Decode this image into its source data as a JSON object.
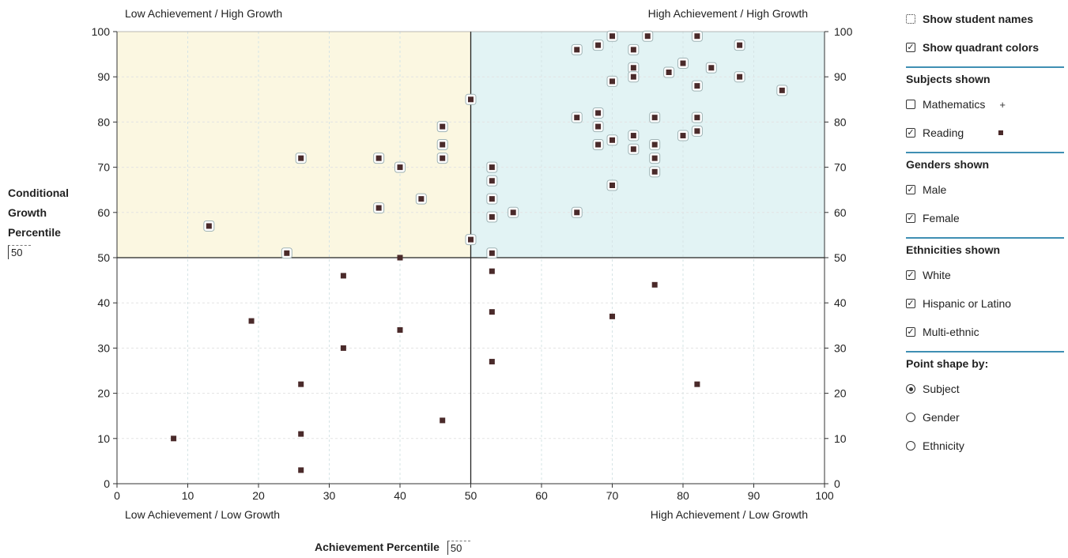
{
  "chart_data": {
    "type": "scatter",
    "xlabel": "Achievement Percentile",
    "ylabel": "Conditional Growth Percentile",
    "xlim": [
      0,
      100
    ],
    "ylim": [
      0,
      100
    ],
    "x_ticks": [
      0,
      10,
      20,
      30,
      40,
      50,
      60,
      70,
      80,
      90,
      100
    ],
    "y_ticks": [
      0,
      10,
      20,
      30,
      40,
      50,
      60,
      70,
      80,
      90,
      100
    ],
    "x_reference": 50,
    "y_reference": 50,
    "quadrant_labels": {
      "top_left": "Low Achievement / High Growth",
      "top_right": "High Achievement / High Growth",
      "bottom_left": "Low Achievement / Low Growth",
      "bottom_right": "High Achievement / Low Growth"
    },
    "quadrant_colors": {
      "top_left": "#fbf7e1",
      "top_right": "#e2f3f4",
      "bottom_left": "#ffffff",
      "bottom_right": "#ffffff"
    },
    "series": [
      {
        "name": "Reading",
        "color": "#4a2a2a",
        "points": [
          [
            70,
            99
          ],
          [
            75,
            99
          ],
          [
            82,
            99
          ],
          [
            65,
            96
          ],
          [
            68,
            97
          ],
          [
            73,
            96
          ],
          [
            88,
            97
          ],
          [
            80,
            93
          ],
          [
            73,
            92
          ],
          [
            78,
            91
          ],
          [
            84,
            92
          ],
          [
            73,
            90
          ],
          [
            88,
            90
          ],
          [
            70,
            89
          ],
          [
            82,
            88
          ],
          [
            94,
            87
          ],
          [
            50,
            85
          ],
          [
            65,
            81
          ],
          [
            68,
            82
          ],
          [
            76,
            81
          ],
          [
            82,
            81
          ],
          [
            68,
            79
          ],
          [
            82,
            78
          ],
          [
            80,
            77
          ],
          [
            73,
            77
          ],
          [
            70,
            76
          ],
          [
            68,
            75
          ],
          [
            76,
            75
          ],
          [
            73,
            74
          ],
          [
            76,
            72
          ],
          [
            76,
            69
          ],
          [
            70,
            66
          ],
          [
            46,
            79
          ],
          [
            46,
            75
          ],
          [
            46,
            72
          ],
          [
            26,
            72
          ],
          [
            37,
            72
          ],
          [
            40,
            70
          ],
          [
            53,
            70
          ],
          [
            53,
            67
          ],
          [
            43,
            63
          ],
          [
            53,
            63
          ],
          [
            37,
            61
          ],
          [
            56,
            60
          ],
          [
            65,
            60
          ],
          [
            53,
            59
          ],
          [
            13,
            57
          ],
          [
            50,
            54
          ],
          [
            24,
            51
          ],
          [
            53,
            51
          ],
          [
            40,
            50
          ],
          [
            53,
            47
          ],
          [
            32,
            46
          ],
          [
            76,
            44
          ],
          [
            53,
            38
          ],
          [
            70,
            37
          ],
          [
            19,
            36
          ],
          [
            40,
            34
          ],
          [
            32,
            30
          ],
          [
            53,
            27
          ],
          [
            26,
            22
          ],
          [
            82,
            22
          ],
          [
            46,
            14
          ],
          [
            26,
            11
          ],
          [
            8,
            10
          ],
          [
            26,
            3
          ]
        ]
      }
    ]
  },
  "left_axis": {
    "title_lines": [
      "Conditional",
      "Growth",
      "Percentile"
    ],
    "reference_value": "50"
  },
  "bottom_axis": {
    "title": "Achievement Percentile",
    "reference_value": "50"
  },
  "panel": {
    "show_student_names": "Show student names",
    "show_quadrant_colors": "Show quadrant colors",
    "subjects_header": "Subjects shown",
    "subject_math": "Mathematics",
    "subject_math_mark": "+",
    "subject_reading": "Reading",
    "genders_header": "Genders shown",
    "gender_male": "Male",
    "gender_female": "Female",
    "ethnicities_header": "Ethnicities shown",
    "eth_white": "White",
    "eth_hispanic": "Hispanic or Latino",
    "eth_multi": "Multi-ethnic",
    "point_shape_label": "Point shape by:",
    "shape_subject": "Subject",
    "shape_gender": "Gender",
    "shape_ethnicity": "Ethnicity",
    "check_mark": "✓",
    "accent_color": "#3f8fb3"
  }
}
